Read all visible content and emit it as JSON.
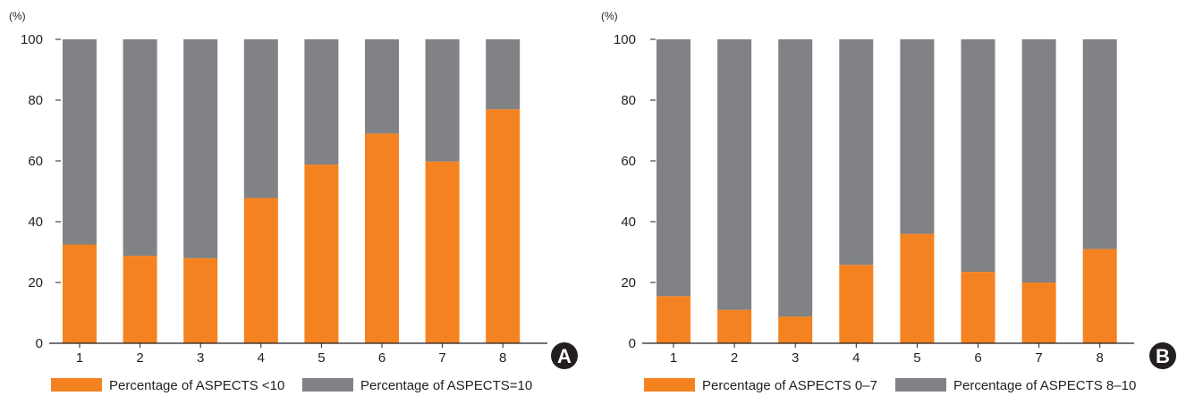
{
  "chart_data": [
    {
      "type": "bar",
      "stacked": true,
      "panel_label": "A",
      "y_unit": "(%)",
      "categories": [
        "1",
        "2",
        "3",
        "4",
        "5",
        "6",
        "7",
        "8"
      ],
      "ylim": [
        0,
        100
      ],
      "yticks": [
        "0",
        "20",
        "40",
        "60",
        "80",
        "100"
      ],
      "grid": false,
      "legend_position": "bottom",
      "series": [
        {
          "name": "Percentage of ASPECTS <10",
          "color": "#f58220",
          "values": [
            32.5,
            28.8,
            28.0,
            47.8,
            58.8,
            69.0,
            59.8,
            77.0
          ]
        },
        {
          "name": "Percentage of ASPECTS=10",
          "color": "#808285",
          "values": [
            67.5,
            71.2,
            72.0,
            52.2,
            41.2,
            31.0,
            40.2,
            23.0
          ]
        }
      ]
    },
    {
      "type": "bar",
      "stacked": true,
      "panel_label": "B",
      "y_unit": "(%)",
      "categories": [
        "1",
        "2",
        "3",
        "4",
        "5",
        "6",
        "7",
        "8"
      ],
      "ylim": [
        0,
        100
      ],
      "yticks": [
        "0",
        "20",
        "40",
        "60",
        "80",
        "100"
      ],
      "grid": false,
      "legend_position": "bottom",
      "series": [
        {
          "name": "Percentage of ASPECTS 0–7",
          "color": "#f58220",
          "values": [
            15.5,
            11.0,
            8.8,
            25.8,
            36.0,
            23.5,
            20.0,
            31.0
          ]
        },
        {
          "name": "Percentage of ASPECTS 8–10",
          "color": "#808285",
          "values": [
            84.5,
            89.0,
            91.2,
            74.2,
            64.0,
            76.5,
            80.0,
            69.0
          ]
        }
      ]
    }
  ]
}
